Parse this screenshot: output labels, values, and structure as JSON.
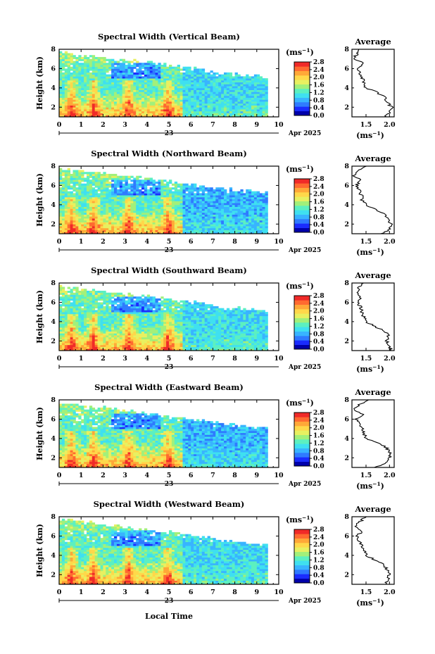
{
  "colors": [
    "#0000aa",
    "#1a2cff",
    "#2f7bff",
    "#38b4ff",
    "#3fe0f0",
    "#5cf0c0",
    "#a2f07a",
    "#e8f060",
    "#ffd84a",
    "#ffa838",
    "#ff6a30",
    "#f02a28"
  ],
  "colorbar": {
    "unit_label": "(ms",
    "unit_sup": "−1",
    "unit_close": ")",
    "tick_values": [
      0.0,
      0.4,
      0.8,
      1.2,
      1.6,
      2.0,
      2.4,
      2.8
    ],
    "tick_labels_a": [
      "0.0",
      "0.4",
      "0.8",
      "1.2",
      "1.6",
      "2.0",
      "2.4",
      "2.8"
    ],
    "tick_labels_b": [
      "0.0",
      "0.4",
      "0.8",
      "1.2",
      "1.6",
      "2.0",
      "2.4",
      "2.8"
    ]
  },
  "xaxis": {
    "ticks": [
      "0",
      "1",
      "2",
      "3",
      "4",
      "5",
      "6",
      "7",
      "8",
      "9",
      "10"
    ],
    "day_label": "23",
    "month_label": "Apr 2025",
    "xlabel": "Local Time",
    "range": [
      0,
      10
    ]
  },
  "yaxis": {
    "ylabel": "Height (km)",
    "ticks": [
      "2",
      "4",
      "6",
      "8"
    ],
    "range": [
      1,
      8
    ]
  },
  "average": {
    "title": "Average",
    "xticks": [
      "1.5",
      "2.0"
    ],
    "xrange": [
      1.2,
      2.1
    ],
    "xlabel": "(ms",
    "xlabel_sup": "−1",
    "xlabel_close": ")"
  },
  "chart_data": [
    {
      "type": "heatmap",
      "title": "Spectral Width (Vertical Beam)",
      "xlabel": "",
      "ylabel": "Height (km)",
      "xlim": [
        0,
        10
      ],
      "ylim": [
        1,
        8
      ],
      "cloud_top": [
        [
          0,
          7.6
        ],
        [
          1,
          7.3
        ],
        [
          2,
          7.0
        ],
        [
          3,
          6.8
        ],
        [
          4,
          6.5
        ],
        [
          5,
          6.3
        ],
        [
          6,
          6.0
        ],
        [
          7,
          5.6
        ],
        [
          8,
          5.3
        ],
        [
          9.5,
          5.0
        ]
      ],
      "avg_profile": {
        "height": [
          1.0,
          1.5,
          2.0,
          2.5,
          3.0,
          3.5,
          4.0,
          4.5,
          5.0,
          5.5,
          6.0,
          6.5,
          7.0,
          7.5,
          8.0
        ],
        "width": [
          1.9,
          2.0,
          2.05,
          1.95,
          1.9,
          1.75,
          1.5,
          1.45,
          1.42,
          1.38,
          1.32,
          1.45,
          1.25,
          1.3,
          1.35
        ]
      }
    },
    {
      "type": "heatmap",
      "title": "Spectral Width (Northward Beam)",
      "xlabel": "",
      "ylabel": "Height (km)",
      "xlim": [
        0,
        10
      ],
      "ylim": [
        1,
        8
      ],
      "cloud_top": [
        [
          0,
          7.7
        ],
        [
          1,
          7.4
        ],
        [
          2,
          7.1
        ],
        [
          3,
          6.9
        ],
        [
          4,
          6.6
        ],
        [
          5,
          6.3
        ],
        [
          6,
          6.0
        ],
        [
          7,
          5.7
        ],
        [
          8,
          5.4
        ],
        [
          9.5,
          5.1
        ]
      ],
      "avg_profile": {
        "height": [
          1.0,
          1.5,
          2.0,
          2.5,
          3.0,
          3.5,
          4.0,
          4.5,
          5.0,
          5.5,
          6.0,
          6.5,
          7.0,
          7.5,
          8.0
        ],
        "width": [
          1.85,
          2.0,
          2.05,
          1.95,
          1.9,
          1.7,
          1.5,
          1.42,
          1.4,
          1.35,
          1.3,
          1.4,
          1.25,
          1.35,
          1.5
        ]
      }
    },
    {
      "type": "heatmap",
      "title": "Spectral Width (Southward Beam)",
      "xlabel": "",
      "ylabel": "Height (km)",
      "xlim": [
        0,
        10
      ],
      "ylim": [
        1,
        8
      ],
      "cloud_top": [
        [
          0,
          7.6
        ],
        [
          1,
          7.3
        ],
        [
          2,
          7.0
        ],
        [
          3,
          6.8
        ],
        [
          4,
          6.5
        ],
        [
          5,
          6.2
        ],
        [
          6,
          6.0
        ],
        [
          7,
          5.6
        ],
        [
          8,
          5.3
        ],
        [
          9.5,
          5.0
        ]
      ],
      "avg_profile": {
        "height": [
          1.0,
          1.5,
          2.0,
          2.5,
          3.0,
          3.5,
          4.0,
          4.5,
          5.0,
          5.5,
          6.0,
          6.5,
          7.0,
          7.5,
          8.0
        ],
        "width": [
          2.05,
          2.0,
          1.95,
          1.98,
          1.9,
          1.7,
          1.5,
          1.45,
          1.42,
          1.38,
          1.32,
          1.4,
          1.28,
          1.35,
          1.45
        ]
      }
    },
    {
      "type": "heatmap",
      "title": "Spectral Width (Eastward Beam)",
      "xlabel": "",
      "ylabel": "Height (km)",
      "xlim": [
        0,
        10
      ],
      "ylim": [
        1,
        8
      ],
      "cloud_top": [
        [
          0,
          7.6
        ],
        [
          1,
          7.3
        ],
        [
          2,
          7.1
        ],
        [
          3,
          6.8
        ],
        [
          4,
          6.5
        ],
        [
          5,
          6.2
        ],
        [
          6,
          5.9
        ],
        [
          7,
          5.6
        ],
        [
          8,
          5.3
        ],
        [
          9.5,
          5.0
        ]
      ],
      "avg_profile": {
        "height": [
          1.0,
          1.5,
          2.0,
          2.5,
          3.0,
          3.5,
          4.0,
          4.5,
          5.0,
          5.5,
          6.0,
          6.5,
          7.0,
          7.5,
          8.0
        ],
        "width": [
          1.7,
          1.95,
          2.0,
          2.0,
          1.95,
          1.75,
          1.5,
          1.45,
          1.42,
          1.38,
          1.3,
          1.42,
          1.25,
          1.35,
          1.55
        ]
      }
    },
    {
      "type": "heatmap",
      "title": "Spectral Width (Westward Beam)",
      "xlabel": "Local Time",
      "ylabel": "Height (km)",
      "xlim": [
        0,
        10
      ],
      "ylim": [
        1,
        8
      ],
      "cloud_top": [
        [
          0,
          7.7
        ],
        [
          1,
          7.4
        ],
        [
          2,
          7.1
        ],
        [
          3,
          6.8
        ],
        [
          4,
          6.5
        ],
        [
          5,
          6.3
        ],
        [
          6,
          6.0
        ],
        [
          7,
          5.6
        ],
        [
          8,
          5.3
        ],
        [
          9.5,
          5.0
        ]
      ],
      "avg_profile": {
        "height": [
          1.0,
          1.5,
          2.0,
          2.5,
          3.0,
          3.5,
          4.0,
          4.5,
          5.0,
          5.5,
          6.0,
          6.5,
          7.0,
          7.5,
          8.0
        ],
        "width": [
          1.9,
          1.95,
          2.0,
          1.95,
          1.9,
          1.7,
          1.5,
          1.45,
          1.4,
          1.36,
          1.3,
          1.42,
          1.25,
          1.38,
          1.5
        ]
      }
    }
  ]
}
